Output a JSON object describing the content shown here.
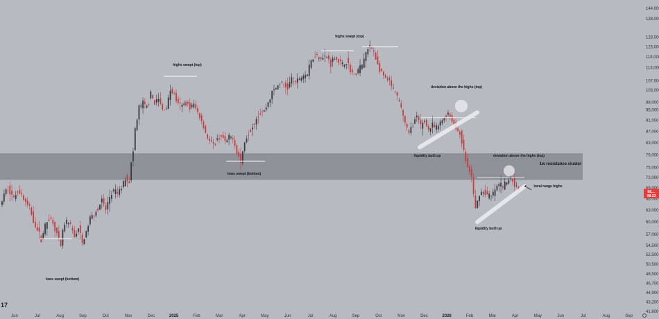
{
  "chart_data": {
    "type": "candlestick",
    "y_axis": {
      "position": "right",
      "scale": "log",
      "ticks": [
        "144,000",
        "138,000",
        "128,000",
        "123,000",
        "118,000",
        "113,000",
        "107,000",
        "103,000",
        "98,000",
        "95,000",
        "91,000",
        "87,000",
        "83,000",
        "79,000",
        "75,000",
        "72,000",
        "69,000",
        "66,000",
        "63,000",
        "60,000",
        "57,000",
        "54,500",
        "52,500",
        "50,500",
        "48,500",
        "46,700",
        "44,900",
        "43,200",
        "41,600"
      ]
    },
    "x_axis": {
      "ticks": [
        {
          "label": "Jun",
          "bold": false
        },
        {
          "label": "Jul",
          "bold": false
        },
        {
          "label": "Aug",
          "bold": false
        },
        {
          "label": "Sep",
          "bold": false
        },
        {
          "label": "Oct",
          "bold": false
        },
        {
          "label": "Nov",
          "bold": false
        },
        {
          "label": "Dec",
          "bold": false
        },
        {
          "label": "2025",
          "bold": true
        },
        {
          "label": "Feb",
          "bold": false
        },
        {
          "label": "Mar",
          "bold": false
        },
        {
          "label": "Apr",
          "bold": false
        },
        {
          "label": "May",
          "bold": false
        },
        {
          "label": "Jun",
          "bold": false
        },
        {
          "label": "Jul",
          "bold": false
        },
        {
          "label": "Aug",
          "bold": false
        },
        {
          "label": "Sep",
          "bold": false
        },
        {
          "label": "Oct",
          "bold": false
        },
        {
          "label": "Nov",
          "bold": false
        },
        {
          "label": "Dec",
          "bold": false
        },
        {
          "label": "2026",
          "bold": true
        },
        {
          "label": "Feb",
          "bold": false
        },
        {
          "label": "Mar",
          "bold": false
        },
        {
          "label": "Apr",
          "bold": false
        },
        {
          "label": "May",
          "bold": false
        },
        {
          "label": "Jun",
          "bold": false
        },
        {
          "label": "Jul",
          "bold": false
        },
        {
          "label": "Aug",
          "bold": false
        },
        {
          "label": "Sep",
          "bold": false
        }
      ]
    },
    "price_path": [
      [
        0,
        64000
      ],
      [
        2,
        67000
      ],
      [
        4,
        69000
      ],
      [
        7,
        66000
      ],
      [
        9,
        68500
      ],
      [
        11,
        67000
      ],
      [
        13,
        65000
      ],
      [
        15,
        63500
      ],
      [
        17,
        60500
      ],
      [
        19,
        58000
      ],
      [
        21,
        56000
      ],
      [
        23,
        59000
      ],
      [
        25,
        61000
      ],
      [
        27,
        60000
      ],
      [
        29,
        57000
      ],
      [
        31,
        54000
      ],
      [
        32,
        58000
      ],
      [
        34,
        60000
      ],
      [
        36,
        59000
      ],
      [
        38,
        56500
      ],
      [
        40,
        58500
      ],
      [
        42,
        55000
      ],
      [
        44,
        57500
      ],
      [
        46,
        61000
      ],
      [
        48,
        62000
      ],
      [
        50,
        63500
      ],
      [
        52,
        65500
      ],
      [
        54,
        63000
      ],
      [
        56,
        66500
      ],
      [
        58,
        68000
      ],
      [
        60,
        67500
      ],
      [
        62,
        69000
      ],
      [
        64,
        72000
      ],
      [
        66,
        71000
      ],
      [
        67,
        76000
      ],
      [
        68,
        80000
      ],
      [
        69,
        88000
      ],
      [
        70,
        91000
      ],
      [
        71,
        96000
      ],
      [
        73,
        97500
      ],
      [
        75,
        96000
      ],
      [
        77,
        101000
      ],
      [
        79,
        98000
      ],
      [
        81,
        99000
      ],
      [
        83,
        95000
      ],
      [
        85,
        96000
      ],
      [
        87,
        103000
      ],
      [
        89,
        101000
      ],
      [
        91,
        97000
      ],
      [
        93,
        96500
      ],
      [
        95,
        98000
      ],
      [
        97,
        96000
      ],
      [
        99,
        97000
      ],
      [
        101,
        94000
      ],
      [
        103,
        91000
      ],
      [
        105,
        86500
      ],
      [
        107,
        83500
      ],
      [
        109,
        82000
      ],
      [
        111,
        84000
      ],
      [
        113,
        85500
      ],
      [
        115,
        83000
      ],
      [
        117,
        84500
      ],
      [
        119,
        85000
      ],
      [
        121,
        80000
      ],
      [
        123,
        76500
      ],
      [
        125,
        83500
      ],
      [
        127,
        86500
      ],
      [
        129,
        89000
      ],
      [
        131,
        92000
      ],
      [
        133,
        94000
      ],
      [
        135,
        94500
      ],
      [
        137,
        98000
      ],
      [
        139,
        102000
      ],
      [
        141,
        104000
      ],
      [
        143,
        106000
      ],
      [
        145,
        105000
      ],
      [
        147,
        104000
      ],
      [
        149,
        108000
      ],
      [
        151,
        106000
      ],
      [
        153,
        108000
      ],
      [
        155,
        109500
      ],
      [
        157,
        110000
      ],
      [
        159,
        116000
      ],
      [
        161,
        119000
      ],
      [
        163,
        118500
      ],
      [
        165,
        117500
      ],
      [
        167,
        118000
      ],
      [
        169,
        115000
      ],
      [
        171,
        118000
      ],
      [
        173,
        116000
      ],
      [
        175,
        114000
      ],
      [
        177,
        116000
      ],
      [
        179,
        112000
      ],
      [
        181,
        109000
      ],
      [
        183,
        112000
      ],
      [
        185,
        114000
      ],
      [
        187,
        120000
      ],
      [
        189,
        123000
      ],
      [
        191,
        121000
      ],
      [
        193,
        114000
      ],
      [
        195,
        110000
      ],
      [
        197,
        108000
      ],
      [
        199,
        106500
      ],
      [
        201,
        103000
      ],
      [
        203,
        100000
      ],
      [
        205,
        96000
      ],
      [
        207,
        90000
      ],
      [
        209,
        86000
      ],
      [
        211,
        90000
      ],
      [
        213,
        92000
      ],
      [
        215,
        89000
      ],
      [
        217,
        91000
      ],
      [
        219,
        87500
      ],
      [
        221,
        89000
      ],
      [
        223,
        88000
      ],
      [
        225,
        90000
      ],
      [
        227,
        92000
      ],
      [
        229,
        94000
      ],
      [
        231,
        91000
      ],
      [
        233,
        88000
      ],
      [
        235,
        86500
      ],
      [
        237,
        80000
      ],
      [
        239,
        75000
      ],
      [
        241,
        72000
      ],
      [
        243,
        63000
      ],
      [
        245,
        67500
      ],
      [
        247,
        68000
      ],
      [
        249,
        67000
      ],
      [
        251,
        66500
      ],
      [
        253,
        68500
      ],
      [
        255,
        70000
      ],
      [
        257,
        69500
      ],
      [
        259,
        70500
      ],
      [
        261,
        72000
      ],
      [
        263,
        70000
      ],
      [
        265,
        68500
      ]
    ]
  },
  "labels": {
    "highs_swept_1": "highs swept (top)",
    "highs_swept_2": "highs swept (top)",
    "lows_swept_bottom": "lows swept (bottom)",
    "lows_swept_bottom_2": "lows swept (bottom)",
    "liquidity_1": "liquidity built up",
    "liquidity_2": "liquidity built up",
    "deviation_1": "deviation above the highs (top)",
    "deviation_2": "deviation above the highs (top)",
    "resistance": "1w resistance cluster",
    "local_range": "local range highs"
  },
  "price_tag": {
    "line1": "68,...",
    "line2": "08:23",
    "color": "#e53b3b"
  },
  "logo": "17",
  "colors": {
    "background": "#b8bac1",
    "resistance_zone": "#6e7078",
    "candle_up": "#3a3a3e",
    "candle_down": "#c23d3d",
    "highlight": "#eceef2"
  }
}
